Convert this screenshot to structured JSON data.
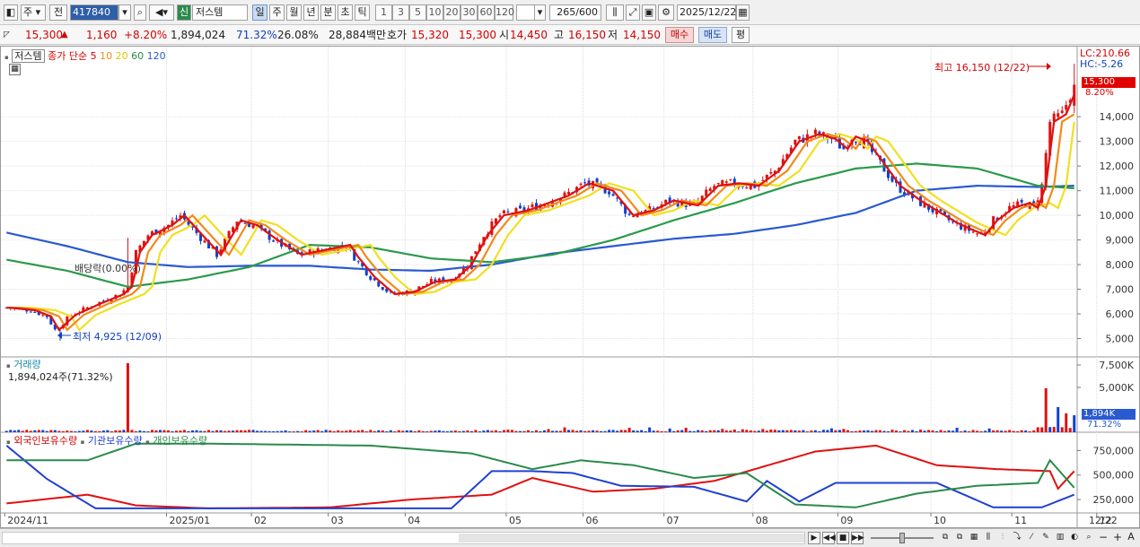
{
  "toolbar": {
    "market": "주",
    "prev_label": "전",
    "code": "417840",
    "new_badge": "신",
    "stock_name": "저스템",
    "periods": [
      "일",
      "주",
      "월",
      "년",
      "분",
      "초",
      "틱"
    ],
    "active_period": "일",
    "intervals": [
      "1",
      "3",
      "5",
      "10",
      "20",
      "30",
      "60",
      "120"
    ],
    "count": "265",
    "count_max": "/600",
    "date": "2025/12/22"
  },
  "quote": {
    "price": "15,300",
    "arrow": "▲",
    "change": "1,160",
    "change_pct": "+8.20%",
    "volume": "1,894,024",
    "volume_ratio": "71.32%",
    "turnover": "26.08%",
    "amount": "28,884백만",
    "ask_label": "호가",
    "ask": "15,320",
    "bid": "15,300",
    "open_label": "시",
    "open": "14,450",
    "high_label": "고",
    "high": "16,150",
    "low_label": "저",
    "low": "14,150",
    "buy_label": "매수",
    "sell_label": "매도",
    "eval_label": "평"
  },
  "price_panel": {
    "legend_title": "저스템",
    "legend_ma": "종가 단순",
    "ma_periods": [
      "5",
      "10",
      "20",
      "60",
      "120"
    ],
    "lc_label": "LC:210.66",
    "hc_label": "HC:-5.26",
    "current_price_tag": "15,300",
    "current_pct_tag": "8.20%",
    "high_annotation": "최고 16,150 (12/22)",
    "low_annotation": "최저 4,925 (12/09)",
    "dividend_annotation": "배당락(0.00%)"
  },
  "volume_panel": {
    "title": "거래량",
    "value": "1,894,024주(71.32%)",
    "current_tag": "1,894K",
    "current_pct_tag": "71.32%"
  },
  "holder_panel": {
    "legend": [
      "외국인보유수량",
      "기관보유수량",
      "개인보유수량"
    ]
  },
  "x_axis": {
    "labels": [
      "2024/11",
      "2025/01",
      "02",
      "03",
      "04",
      "05",
      "06",
      "07",
      "08",
      "09",
      "10",
      "11",
      "12"
    ],
    "last_label": "12/22"
  },
  "chart_data": {
    "type": "candlestick",
    "title": "저스템",
    "price_axis": {
      "ticks": [
        5000,
        6000,
        7000,
        8000,
        9000,
        10000,
        11000,
        12000,
        13000,
        14000
      ],
      "range": [
        4400,
        16700
      ]
    },
    "volume_axis": {
      "ticks": [
        "5,000K",
        "7,500K"
      ],
      "range": [
        0,
        8000
      ]
    },
    "holder_axis": {
      "ticks": [
        "250,000",
        "500,000",
        "750,000"
      ],
      "range": [
        150000,
        900000
      ]
    },
    "close_trace": [
      [
        0,
        6250
      ],
      [
        6,
        6150
      ],
      [
        10,
        5900
      ],
      [
        12,
        5350
      ],
      [
        16,
        5950
      ],
      [
        22,
        6400
      ],
      [
        28,
        6800
      ],
      [
        30,
        7100
      ],
      [
        32,
        8500
      ],
      [
        35,
        9200
      ],
      [
        40,
        9600
      ],
      [
        43,
        10000
      ],
      [
        48,
        9100
      ],
      [
        52,
        8400
      ],
      [
        57,
        9800
      ],
      [
        61,
        9600
      ],
      [
        66,
        9000
      ],
      [
        72,
        8400
      ],
      [
        78,
        8600
      ],
      [
        84,
        8800
      ],
      [
        86,
        8300
      ],
      [
        90,
        7500
      ],
      [
        95,
        6800
      ],
      [
        100,
        6900
      ],
      [
        105,
        7300
      ],
      [
        110,
        7400
      ],
      [
        114,
        8000
      ],
      [
        118,
        9200
      ],
      [
        122,
        10000
      ],
      [
        128,
        10200
      ],
      [
        133,
        10500
      ],
      [
        138,
        10800
      ],
      [
        143,
        11300
      ],
      [
        149,
        11000
      ],
      [
        154,
        10000
      ],
      [
        159,
        10200
      ],
      [
        164,
        10600
      ],
      [
        170,
        10400
      ],
      [
        175,
        11200
      ],
      [
        180,
        11300
      ],
      [
        185,
        11200
      ],
      [
        190,
        11800
      ],
      [
        195,
        13000
      ],
      [
        200,
        13300
      ],
      [
        204,
        13100
      ],
      [
        207,
        12700
      ],
      [
        209,
        13200
      ],
      [
        212,
        13000
      ],
      [
        216,
        12100
      ],
      [
        220,
        11200
      ],
      [
        225,
        10600
      ],
      [
        230,
        10100
      ],
      [
        234,
        9700
      ],
      [
        238,
        9400
      ],
      [
        241,
        9200
      ],
      [
        244,
        9800
      ],
      [
        248,
        10300
      ],
      [
        252,
        10500
      ],
      [
        254,
        10300
      ],
      [
        256,
        11200
      ],
      [
        258,
        13800
      ],
      [
        261,
        14100
      ],
      [
        264,
        15300
      ]
    ],
    "ma_lines": [
      {
        "name": "5",
        "color": "#e01010",
        "shift": 1
      },
      {
        "name": "10",
        "color": "#f08a1a",
        "shift": 3
      },
      {
        "name": "20",
        "color": "#f0e020",
        "shift": 6
      }
    ],
    "ma60": [
      [
        0,
        8200
      ],
      [
        15,
        7750
      ],
      [
        30,
        7100
      ],
      [
        45,
        7400
      ],
      [
        60,
        7900
      ],
      [
        75,
        8800
      ],
      [
        90,
        8700
      ],
      [
        105,
        8250
      ],
      [
        120,
        8100
      ],
      [
        135,
        8400
      ],
      [
        150,
        9000
      ],
      [
        165,
        9800
      ],
      [
        180,
        10500
      ],
      [
        195,
        11300
      ],
      [
        210,
        11900
      ],
      [
        225,
        12100
      ],
      [
        240,
        11900
      ],
      [
        255,
        11200
      ],
      [
        264,
        11100
      ]
    ],
    "ma120": [
      [
        0,
        9300
      ],
      [
        15,
        8750
      ],
      [
        30,
        8100
      ],
      [
        45,
        7900
      ],
      [
        60,
        7950
      ],
      [
        75,
        7950
      ],
      [
        90,
        7800
      ],
      [
        105,
        7750
      ],
      [
        120,
        8000
      ],
      [
        135,
        8450
      ],
      [
        150,
        8750
      ],
      [
        165,
        9050
      ],
      [
        180,
        9250
      ],
      [
        195,
        9600
      ],
      [
        210,
        10100
      ],
      [
        225,
        11000
      ],
      [
        240,
        11200
      ],
      [
        255,
        11150
      ],
      [
        264,
        11200
      ]
    ],
    "volume_spikes": [
      [
        30,
        7700
      ],
      [
        257,
        4900
      ],
      [
        260,
        2800
      ],
      [
        262,
        2100
      ],
      [
        264,
        1894
      ]
    ],
    "holders": [
      {
        "name": "외국인보유수량",
        "color": "#e01010",
        "points": [
          [
            0,
            210000
          ],
          [
            20,
            300000
          ],
          [
            32,
            190000
          ],
          [
            50,
            160000
          ],
          [
            80,
            170000
          ],
          [
            100,
            250000
          ],
          [
            120,
            300000
          ],
          [
            130,
            470000
          ],
          [
            145,
            330000
          ],
          [
            160,
            360000
          ],
          [
            175,
            440000
          ],
          [
            185,
            560000
          ],
          [
            200,
            740000
          ],
          [
            215,
            800000
          ],
          [
            230,
            600000
          ],
          [
            245,
            560000
          ],
          [
            258,
            540000
          ],
          [
            260,
            360000
          ],
          [
            264,
            540000
          ]
        ]
      },
      {
        "name": "기관보유수량",
        "color": "#2040d0",
        "points": [
          [
            0,
            800000
          ],
          [
            10,
            460000
          ],
          [
            22,
            160000
          ],
          [
            50,
            160000
          ],
          [
            90,
            160000
          ],
          [
            110,
            160000
          ],
          [
            120,
            540000
          ],
          [
            130,
            540000
          ],
          [
            140,
            520000
          ],
          [
            152,
            390000
          ],
          [
            170,
            380000
          ],
          [
            183,
            230000
          ],
          [
            188,
            440000
          ],
          [
            196,
            230000
          ],
          [
            205,
            420000
          ],
          [
            230,
            420000
          ],
          [
            244,
            170000
          ],
          [
            256,
            170000
          ],
          [
            264,
            300000
          ]
        ]
      },
      {
        "name": "개인보유수량",
        "color": "#2a8a4a",
        "points": [
          [
            0,
            650000
          ],
          [
            20,
            650000
          ],
          [
            32,
            820000
          ],
          [
            50,
            820000
          ],
          [
            90,
            800000
          ],
          [
            115,
            720000
          ],
          [
            130,
            560000
          ],
          [
            142,
            650000
          ],
          [
            155,
            600000
          ],
          [
            170,
            470000
          ],
          [
            183,
            520000
          ],
          [
            195,
            200000
          ],
          [
            210,
            170000
          ],
          [
            225,
            310000
          ],
          [
            240,
            390000
          ],
          [
            255,
            420000
          ],
          [
            258,
            650000
          ],
          [
            264,
            370000
          ]
        ]
      }
    ]
  }
}
